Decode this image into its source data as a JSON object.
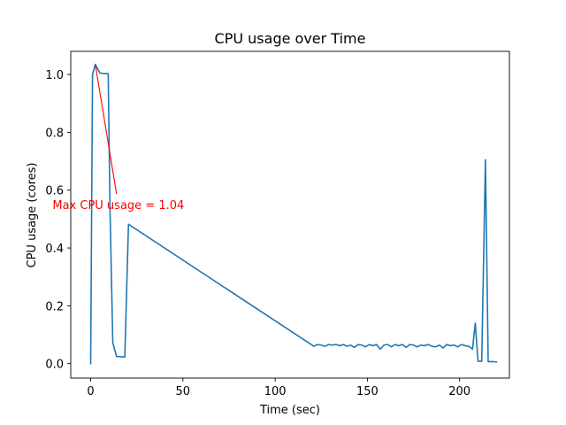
{
  "chart_data": {
    "type": "line",
    "title": "CPU usage over Time",
    "xlabel": "Time (sec)",
    "ylabel": "CPU usage (cores)",
    "xlim": [
      -10.8,
      227
    ],
    "ylim": [
      -0.05,
      1.08
    ],
    "xticks": [
      0,
      50,
      100,
      150,
      200
    ],
    "xtick_labels": [
      "0",
      "50",
      "100",
      "150",
      "200"
    ],
    "yticks": [
      0.0,
      0.2,
      0.4,
      0.6,
      0.8,
      1.0
    ],
    "ytick_labels": [
      "0.0",
      "0.2",
      "0.4",
      "0.6",
      "0.8",
      "1.0"
    ],
    "grid": false,
    "series": [
      {
        "name": "CPU usage",
        "color": "#1f77b4",
        "x": [
          0,
          1,
          2.5,
          5,
          7,
          9.5,
          10.5,
          12,
          14,
          16,
          18.5,
          20.5,
          121,
          123,
          125,
          127,
          129,
          131,
          133,
          135,
          137,
          139,
          141,
          143,
          145,
          147,
          149,
          151,
          153,
          155,
          157,
          159,
          161,
          163,
          165,
          167,
          169,
          171,
          173,
          175,
          177,
          179,
          181,
          183,
          185,
          187,
          189,
          191,
          193,
          195,
          197,
          199,
          201,
          203,
          205,
          207,
          208.5,
          210,
          212,
          214,
          215.5,
          217,
          220
        ],
        "y": [
          0.0,
          1.0,
          1.035,
          1.005,
          1.003,
          1.003,
          0.53,
          0.072,
          0.025,
          0.024,
          0.023,
          0.482,
          0.06,
          0.066,
          0.064,
          0.06,
          0.066,
          0.064,
          0.066,
          0.062,
          0.066,
          0.06,
          0.064,
          0.056,
          0.066,
          0.064,
          0.058,
          0.066,
          0.062,
          0.066,
          0.05,
          0.064,
          0.066,
          0.058,
          0.066,
          0.062,
          0.066,
          0.056,
          0.066,
          0.064,
          0.058,
          0.064,
          0.062,
          0.066,
          0.06,
          0.058,
          0.064,
          0.054,
          0.066,
          0.062,
          0.064,
          0.058,
          0.066,
          0.062,
          0.06,
          0.05,
          0.14,
          0.008,
          0.008,
          0.705,
          0.007,
          0.007,
          0.006
        ]
      }
    ],
    "annotations": [
      {
        "text": "Max CPU usage = 1.04",
        "color": "#ff0000",
        "point": [
          2.5,
          1.035
        ],
        "text_anchor_data": [
          15,
          0.55
        ]
      }
    ]
  }
}
